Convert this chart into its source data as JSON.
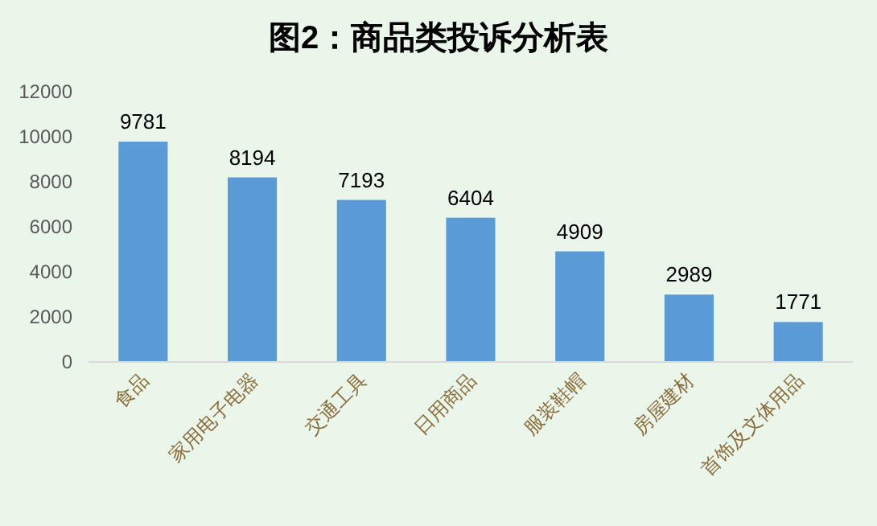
{
  "chart_data": {
    "type": "bar",
    "title": "图2：商品类投诉分析表",
    "categories": [
      "食品",
      "家用电子电器",
      "交通工具",
      "日用商品",
      "服装鞋帽",
      "房屋建材",
      "首饰及文体用品"
    ],
    "values": [
      9781,
      8194,
      7193,
      6404,
      4909,
      2989,
      1771
    ],
    "color": "#5b9bd5",
    "ylim": [
      0,
      12000
    ],
    "yticks": [
      0,
      2000,
      4000,
      6000,
      8000,
      10000,
      12000
    ],
    "grid": false,
    "data_labels": true
  }
}
